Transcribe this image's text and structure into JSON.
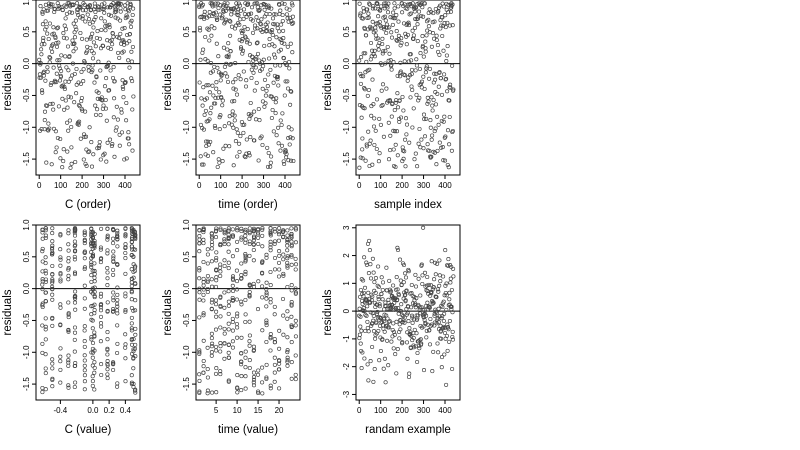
{
  "chart_data": [
    {
      "type": "scatter",
      "xlabel": "C (order)",
      "ylabel": "residuals",
      "xlim": [
        -15,
        470
      ],
      "ylim": [
        -1.75,
        1.0
      ],
      "xticks": [
        0,
        100,
        200,
        300,
        400
      ],
      "yticks": [
        -1.5,
        -1.0,
        -0.5,
        0.0,
        0.5,
        1.0
      ],
      "ytick_labels": [
        "-1.5",
        "-1.0",
        "-0.5",
        "0.0",
        "0.5",
        "1.0"
      ],
      "hline": 0,
      "generator": {
        "kind": "order",
        "n": 440,
        "seed": 11,
        "y_min": -1.7,
        "y_max": 0.95
      },
      "points": []
    },
    {
      "type": "scatter",
      "xlabel": "time (order)",
      "ylabel": "residuals",
      "xlim": [
        -15,
        470
      ],
      "ylim": [
        -1.75,
        1.0
      ],
      "xticks": [
        0,
        100,
        200,
        300,
        400
      ],
      "yticks": [
        -1.5,
        -1.0,
        -0.5,
        0.0,
        0.5,
        1.0
      ],
      "ytick_labels": [
        "-1.5",
        "-1.0",
        "-0.5",
        "0.0",
        "0.5",
        "1.0"
      ],
      "hline": 0,
      "generator": {
        "kind": "order",
        "n": 440,
        "seed": 23,
        "y_min": -1.7,
        "y_max": 0.95
      },
      "points": []
    },
    {
      "type": "scatter",
      "xlabel": "sample index",
      "ylabel": "residuals",
      "xlim": [
        -15,
        470
      ],
      "ylim": [
        -1.75,
        1.0
      ],
      "xticks": [
        0,
        100,
        200,
        300,
        400
      ],
      "yticks": [
        -1.5,
        -1.0,
        -0.5,
        0.0,
        0.5,
        1.0
      ],
      "ytick_labels": [
        "-1.5",
        "-1.0",
        "-0.5",
        "0.0",
        "0.5",
        "1.0"
      ],
      "hline": 0,
      "generator": {
        "kind": "order",
        "n": 440,
        "seed": 37,
        "y_min": -1.7,
        "y_max": 0.95
      },
      "points": []
    },
    {
      "type": "scatter",
      "xlabel": "C (value)",
      "ylabel": "residuals",
      "xlim": [
        -0.7,
        0.58
      ],
      "ylim": [
        -1.75,
        1.0
      ],
      "xticks": [
        -0.4,
        0.0,
        0.2,
        0.4
      ],
      "xtick_labels": [
        "-0.4",
        "0.0",
        "0.2",
        "0.4"
      ],
      "yticks": [
        -1.5,
        -1.0,
        -0.5,
        0.0,
        0.5,
        1.0
      ],
      "ytick_labels": [
        "-1.5",
        "-1.0",
        "-0.5",
        "0.0",
        "0.5",
        "1.0"
      ],
      "hline": 0,
      "generator": {
        "kind": "columns",
        "n": 440,
        "seed": 41,
        "y_min": -1.7,
        "y_max": 0.95,
        "columns": [
          -0.62,
          -0.58,
          -0.5,
          -0.4,
          -0.3,
          -0.22,
          -0.1,
          -0.02,
          0.0,
          0.02,
          0.1,
          0.18,
          0.25,
          0.3,
          0.4,
          0.48,
          0.5,
          0.52
        ]
      },
      "points": []
    },
    {
      "type": "scatter",
      "xlabel": "time (value)",
      "ylabel": "residuals",
      "xlim": [
        0.2,
        25
      ],
      "ylim": [
        -1.75,
        1.0
      ],
      "xticks": [
        5,
        10,
        15,
        20
      ],
      "yticks": [
        -1.5,
        -1.0,
        -0.5,
        0.0,
        0.5,
        1.0
      ],
      "ytick_labels": [
        "-1.5",
        "-1.0",
        "-0.5",
        "0.0",
        "0.5",
        "1.0"
      ],
      "hline": 0,
      "generator": {
        "kind": "columns",
        "n": 440,
        "seed": 53,
        "y_min": -1.7,
        "y_max": 0.95,
        "columns": [
          1,
          2,
          3,
          4,
          5,
          6,
          7,
          8,
          9,
          10,
          11,
          12,
          13,
          14,
          15,
          16,
          17,
          18,
          19,
          20,
          21,
          22,
          23,
          24
        ]
      },
      "points": []
    },
    {
      "type": "scatter",
      "xlabel": "randam example",
      "ylabel": "residuals",
      "xlim": [
        -15,
        470
      ],
      "ylim": [
        -3.2,
        3.1
      ],
      "xticks": [
        0,
        100,
        200,
        300,
        400
      ],
      "yticks": [
        -3,
        -2,
        -1,
        0,
        1,
        2,
        3
      ],
      "ytick_labels": [
        "-3",
        "-2",
        "-1",
        "0",
        "1",
        "2",
        "3"
      ],
      "hline": 0,
      "generator": {
        "kind": "order",
        "n": 440,
        "seed": 67,
        "y_min": -3.1,
        "y_max": 3.0,
        "normal": true
      },
      "points": []
    }
  ]
}
